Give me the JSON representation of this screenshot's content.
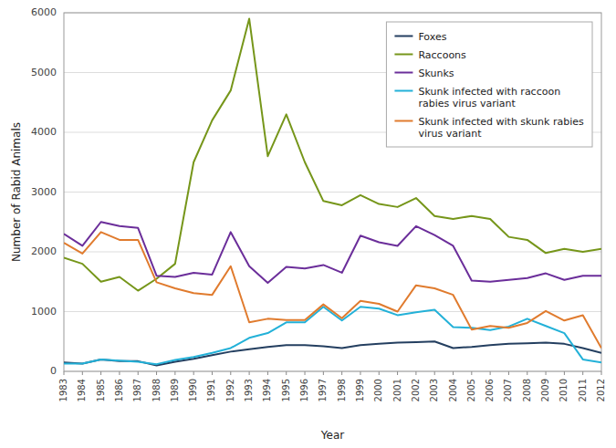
{
  "chart_data": {
    "type": "line",
    "xlabel": "Year",
    "ylabel": "Number of Rabid Animals",
    "x": [
      1983,
      1984,
      1985,
      1986,
      1987,
      1988,
      1989,
      1990,
      1991,
      1992,
      1993,
      1994,
      1995,
      1996,
      1997,
      1998,
      1999,
      2000,
      2001,
      2002,
      2003,
      2004,
      2005,
      2006,
      2007,
      2008,
      2009,
      2010,
      2011,
      2012
    ],
    "series": [
      {
        "name": "Foxes",
        "color": "#243f60",
        "values": [
          150,
          130,
          200,
          170,
          170,
          100,
          160,
          210,
          270,
          330,
          370,
          410,
          440,
          440,
          420,
          390,
          440,
          460,
          480,
          490,
          500,
          390,
          410,
          440,
          460,
          470,
          480,
          460,
          390,
          310
        ]
      },
      {
        "name": "Raccoons",
        "color": "#76961a",
        "values": [
          1900,
          1800,
          1500,
          1580,
          1350,
          1550,
          1800,
          3500,
          4200,
          4700,
          5900,
          3600,
          4300,
          3500,
          2850,
          2780,
          2950,
          2800,
          2750,
          2900,
          2600,
          2550,
          2600,
          2550,
          2250,
          2200,
          1980,
          2050,
          2000,
          2050
        ]
      },
      {
        "name": "Skunks",
        "color": "#6b2e9a",
        "values": [
          2300,
          2100,
          2500,
          2430,
          2400,
          1600,
          1580,
          1650,
          1620,
          2330,
          1760,
          1480,
          1750,
          1720,
          1780,
          1650,
          2270,
          2160,
          2100,
          2430,
          2280,
          2100,
          1520,
          1500,
          1530,
          1560,
          1640,
          1530,
          1600,
          1600
        ]
      },
      {
        "name": "Skunk infected with raccoon\nrabies virus variant",
        "color": "#23b1d8",
        "values": [
          130,
          130,
          200,
          180,
          160,
          120,
          190,
          240,
          310,
          390,
          560,
          640,
          820,
          820,
          1080,
          850,
          1080,
          1050,
          940,
          990,
          1030,
          740,
          730,
          690,
          750,
          880,
          760,
          640,
          200,
          150
        ]
      },
      {
        "name": "Skunk infected with skunk rabies\nvirus variant",
        "color": "#e07b2e",
        "values": [
          2150,
          1970,
          2330,
          2200,
          2200,
          1490,
          1390,
          1310,
          1280,
          1760,
          820,
          880,
          860,
          860,
          1120,
          890,
          1180,
          1130,
          1000,
          1440,
          1390,
          1280,
          700,
          760,
          730,
          810,
          1010,
          850,
          940,
          390
        ]
      }
    ],
    "xlim": [
      1983,
      2012
    ],
    "xticks": [
      1983,
      1984,
      1985,
      1986,
      1987,
      1988,
      1989,
      1990,
      1991,
      1992,
      1993,
      1994,
      1995,
      1996,
      1997,
      1998,
      1999,
      2000,
      2001,
      2002,
      2003,
      2004,
      2005,
      2006,
      2007,
      2008,
      2009,
      2010,
      2011,
      2012
    ],
    "ylim": [
      0,
      6000
    ],
    "yticks": [
      0,
      1000,
      2000,
      3000,
      4000,
      5000,
      6000
    ],
    "grid": true,
    "legend": "upper right"
  }
}
